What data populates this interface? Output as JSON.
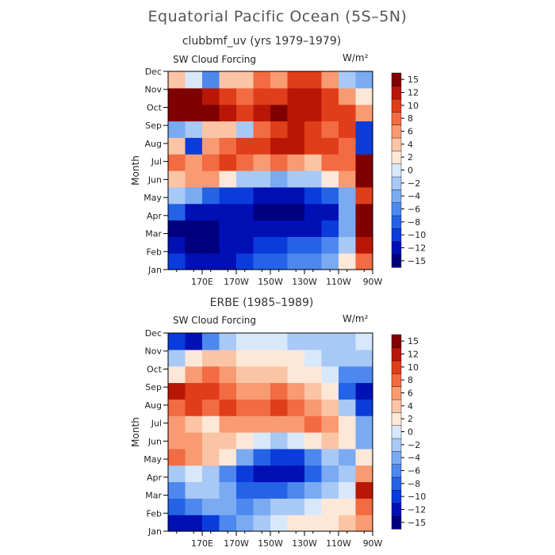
{
  "title": "Equatorial Pacific Ocean (5S–5N)",
  "colorbar": {
    "levels": [
      -15,
      -12,
      -10,
      -8,
      -6,
      -4,
      -2,
      0,
      2,
      4,
      6,
      8,
      10,
      12,
      15
    ],
    "tick_labels": [
      "−15",
      "−12",
      "−10",
      "−8",
      "−6",
      "−4",
      "−2",
      "0",
      "2",
      "4",
      "6",
      "8",
      "10",
      "12",
      "15"
    ],
    "colors": [
      "#00007f",
      "#0010b5",
      "#0a3cdc",
      "#2563e6",
      "#4d88ee",
      "#7aaaf2",
      "#a8c8f6",
      "#d8e8fb",
      "#fde8d8",
      "#fbc4a4",
      "#f89a72",
      "#f26b42",
      "#e03d1a",
      "#b81708",
      "#800000"
    ]
  },
  "chart_data": [
    {
      "type": "heatmap",
      "title": "clubbmf_uv (yrs 1979–1979)",
      "label_left": "SW Cloud Forcing",
      "units": "W/m²",
      "ylabel": "Month",
      "x_ticks": [
        "170E",
        "170W",
        "150W",
        "130W",
        "110W",
        "90W"
      ],
      "x_tick_lons": [
        170,
        190,
        210,
        230,
        250,
        270
      ],
      "x_range_lon": [
        150,
        270
      ],
      "y_ticks": [
        "Jan",
        "Feb",
        "Mar",
        "Apr",
        "May",
        "Jun",
        "Jul",
        "Aug",
        "Sep",
        "Oct",
        "Nov",
        "Dec"
      ],
      "x_grid_lons": [
        155,
        165,
        175,
        185,
        195,
        205,
        215,
        225,
        235,
        245,
        255,
        265
      ],
      "values": [
        [
          -10,
          -12,
          -14,
          -14,
          -11,
          -9,
          -8,
          -7,
          -6,
          -4,
          2,
          8
        ],
        [
          -14,
          -15,
          -15,
          -14,
          -12,
          -10,
          -10,
          -9,
          -8,
          -6,
          -2,
          12
        ],
        [
          -15,
          -15,
          -15,
          -14,
          -12,
          -13,
          -14,
          -14,
          -13,
          -11,
          -4,
          14
        ],
        [
          -8,
          -12,
          -13,
          -12,
          -14,
          -15,
          -15,
          -15,
          -14,
          -12,
          -5,
          13
        ],
        [
          -3,
          -4,
          -8,
          -11,
          -11,
          -12,
          -13,
          -12,
          -11,
          -8,
          -4,
          10
        ],
        [
          4,
          5,
          6,
          2,
          -2,
          -3,
          -4,
          -3,
          -2,
          1,
          6,
          15
        ],
        [
          8,
          6,
          7,
          9,
          8,
          6,
          7,
          5,
          4,
          8,
          7,
          14
        ],
        [
          4,
          -10,
          5,
          7,
          9,
          9,
          12,
          11,
          10,
          9,
          8,
          -11
        ],
        [
          -4,
          -3,
          4,
          3,
          -3,
          8,
          10,
          11,
          9,
          8,
          10,
          -10
        ],
        [
          15,
          15,
          14,
          12,
          10,
          12,
          14,
          12,
          11,
          10,
          9,
          6
        ],
        [
          15,
          15,
          12,
          9,
          8,
          10,
          10,
          11,
          12,
          10,
          6,
          2
        ],
        [
          4,
          0,
          -6,
          3,
          4,
          8,
          6,
          9,
          10,
          6,
          -2,
          -5
        ]
      ]
    },
    {
      "type": "heatmap",
      "title": "ERBE (1985–1989)",
      "label_left": "SW Cloud Forcing",
      "units": "W/m²",
      "ylabel": "Month",
      "x_ticks": [
        "170E",
        "170W",
        "150W",
        "130W",
        "110W",
        "90W"
      ],
      "x_tick_lons": [
        170,
        190,
        210,
        230,
        250,
        270
      ],
      "x_range_lon": [
        150,
        270
      ],
      "y_ticks": [
        "Jan",
        "Feb",
        "Mar",
        "Apr",
        "May",
        "Jun",
        "Jul",
        "Aug",
        "Sep",
        "Oct",
        "Nov",
        "Dec"
      ],
      "x_grid_lons": [
        155,
        165,
        175,
        185,
        195,
        205,
        215,
        225,
        235,
        245,
        255,
        265
      ],
      "values": [
        [
          -12,
          -14,
          -10,
          -6,
          -4,
          -2,
          0,
          2,
          2,
          2,
          4,
          6
        ],
        [
          -8,
          -6,
          -4,
          -4,
          -6,
          -4,
          -2,
          -2,
          0,
          2,
          2,
          8
        ],
        [
          -6,
          -3,
          -2,
          -4,
          -8,
          -9,
          -8,
          -6,
          -4,
          -2,
          0,
          12
        ],
        [
          -2,
          0,
          -2,
          -6,
          -10,
          -12,
          -14,
          -12,
          -8,
          -4,
          -2,
          6
        ],
        [
          8,
          6,
          4,
          2,
          -4,
          -8,
          -10,
          -10,
          -6,
          -2,
          -4,
          2
        ],
        [
          6,
          6,
          4,
          4,
          2,
          0,
          -2,
          0,
          2,
          4,
          2,
          -4
        ],
        [
          6,
          4,
          2,
          6,
          6,
          6,
          6,
          6,
          8,
          6,
          2,
          -4
        ],
        [
          8,
          10,
          8,
          10,
          8,
          8,
          10,
          8,
          6,
          4,
          -2,
          -10
        ],
        [
          12,
          10,
          10,
          8,
          6,
          6,
          8,
          6,
          4,
          2,
          -8,
          -12
        ],
        [
          2,
          6,
          8,
          6,
          4,
          4,
          4,
          2,
          2,
          0,
          -6,
          -6
        ],
        [
          -2,
          2,
          4,
          4,
          2,
          2,
          2,
          2,
          0,
          -2,
          -2,
          -2
        ],
        [
          -10,
          -12,
          -6,
          -2,
          0,
          0,
          0,
          -2,
          -2,
          -2,
          -2,
          0
        ]
      ]
    }
  ]
}
